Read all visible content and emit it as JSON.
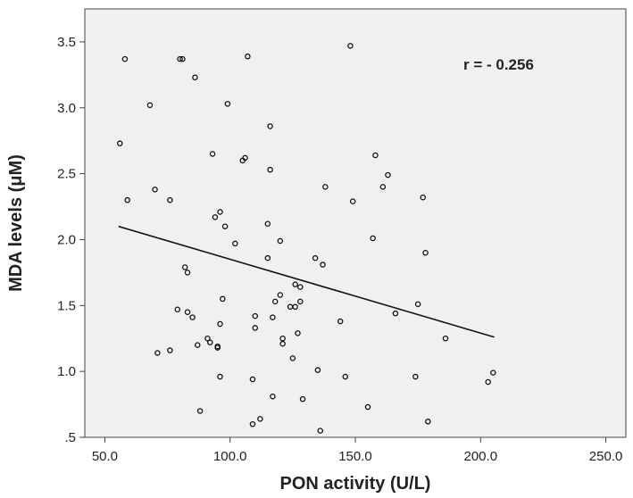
{
  "chart_data": {
    "type": "scatter",
    "xlabel": "PON activity (U/L)",
    "ylabel": "MDA levels (μM)",
    "xlim": [
      42,
      258
    ],
    "ylim": [
      0.5,
      3.75
    ],
    "x_ticks": [
      50,
      100,
      150,
      200,
      250
    ],
    "x_tick_labels": [
      "50.0",
      "100.0",
      "150.0",
      "200.0",
      "250.0"
    ],
    "y_ticks": [
      0.5,
      1.0,
      1.5,
      2.0,
      2.5,
      3.0,
      3.5
    ],
    "y_tick_labels": [
      ".5",
      "1.0",
      "1.5",
      "2.0",
      "2.5",
      "3.0",
      "3.5"
    ],
    "annotation": "r = - 0.256",
    "grid": false,
    "colors": {
      "plot_background": "#f0f0f0",
      "marker": "#111111",
      "line": "#111111"
    },
    "fit_line": {
      "x": [
        55.5,
        205.5
      ],
      "y": [
        2.1,
        1.26
      ]
    },
    "points": [
      [
        56,
        2.73
      ],
      [
        58,
        3.37
      ],
      [
        59,
        2.3
      ],
      [
        68,
        3.02
      ],
      [
        70,
        2.38
      ],
      [
        71,
        1.14
      ],
      [
        76,
        2.3
      ],
      [
        76,
        1.16
      ],
      [
        79,
        1.47
      ],
      [
        80,
        3.37
      ],
      [
        81,
        3.37
      ],
      [
        82,
        1.79
      ],
      [
        83,
        1.75
      ],
      [
        83,
        1.45
      ],
      [
        85,
        1.41
      ],
      [
        86,
        3.23
      ],
      [
        87,
        1.2
      ],
      [
        88,
        0.7
      ],
      [
        91,
        1.25
      ],
      [
        92,
        1.22
      ],
      [
        93,
        2.65
      ],
      [
        94,
        2.17
      ],
      [
        95,
        1.18
      ],
      [
        95,
        1.19
      ],
      [
        96,
        1.36
      ],
      [
        96,
        2.21
      ],
      [
        96,
        0.96
      ],
      [
        97,
        1.55
      ],
      [
        98,
        2.1
      ],
      [
        99,
        3.03
      ],
      [
        102,
        1.97
      ],
      [
        105,
        2.6
      ],
      [
        106,
        2.62
      ],
      [
        107,
        3.39
      ],
      [
        109,
        0.6
      ],
      [
        109,
        0.94
      ],
      [
        110,
        1.42
      ],
      [
        110,
        1.33
      ],
      [
        112,
        0.64
      ],
      [
        115,
        2.12
      ],
      [
        115,
        1.86
      ],
      [
        116,
        2.86
      ],
      [
        116,
        2.53
      ],
      [
        117,
        1.41
      ],
      [
        117,
        0.81
      ],
      [
        118,
        1.53
      ],
      [
        120,
        1.99
      ],
      [
        120,
        1.58
      ],
      [
        121,
        1.21
      ],
      [
        121,
        1.25
      ],
      [
        124,
        1.49
      ],
      [
        125,
        1.1
      ],
      [
        126,
        1.66
      ],
      [
        126,
        1.49
      ],
      [
        127,
        1.29
      ],
      [
        128,
        1.64
      ],
      [
        128,
        1.53
      ],
      [
        129,
        0.79
      ],
      [
        134,
        1.86
      ],
      [
        135,
        1.01
      ],
      [
        136,
        0.55
      ],
      [
        137,
        1.81
      ],
      [
        138,
        2.4
      ],
      [
        144,
        1.38
      ],
      [
        146,
        0.96
      ],
      [
        148,
        3.47
      ],
      [
        149,
        2.29
      ],
      [
        155,
        0.73
      ],
      [
        157,
        2.01
      ],
      [
        158,
        2.64
      ],
      [
        161,
        2.4
      ],
      [
        163,
        2.49
      ],
      [
        166,
        1.44
      ],
      [
        174,
        0.96
      ],
      [
        175,
        1.51
      ],
      [
        177,
        2.32
      ],
      [
        178,
        1.9
      ],
      [
        179,
        0.62
      ],
      [
        186,
        1.25
      ],
      [
        203,
        0.92
      ],
      [
        205,
        0.99
      ]
    ]
  }
}
